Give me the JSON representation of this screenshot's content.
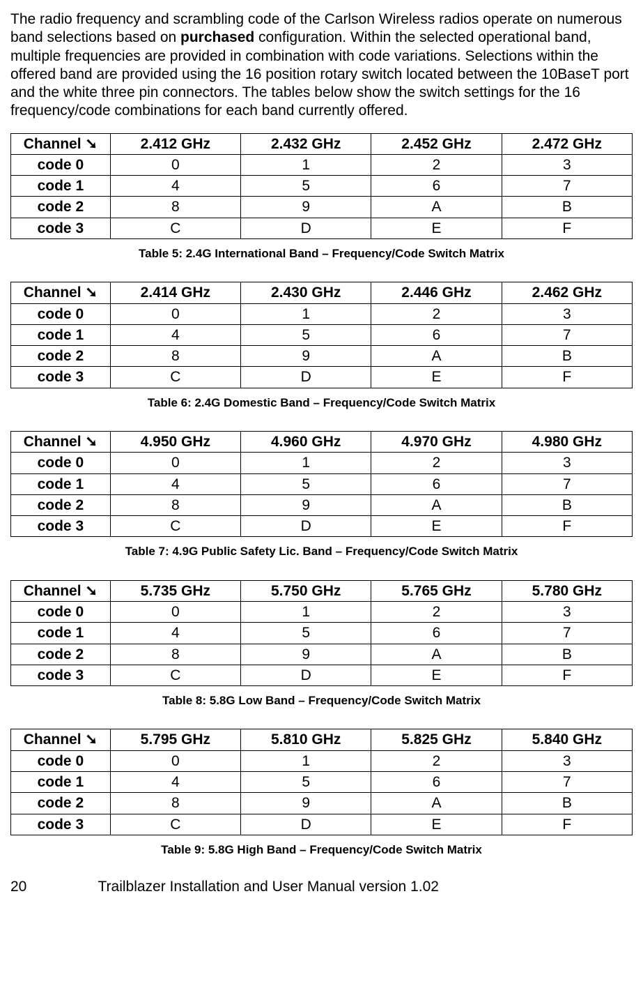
{
  "intro": {
    "part1": "The radio frequency and scrambling code of the Carlson Wireless radios operate on numerous band selections based on ",
    "bold": "purchased",
    "part2": " configuration.  Within the selected operational band, multiple frequencies are provided in combination with code variations.  Selections within the offered band are provided using the 16 position rotary switch located between the 10BaseT port and the white three pin connectors.  The tables below show the switch settings for the 16 frequency/code combinations for each band currently offered."
  },
  "channel_label": "Channel ",
  "arrow": "➘",
  "row_labels": [
    "code 0",
    "code 1",
    "code 2",
    "code 3"
  ],
  "matrix_rows": [
    [
      "0",
      "1",
      "2",
      "3"
    ],
    [
      "4",
      "5",
      "6",
      "7"
    ],
    [
      "8",
      "9",
      "A",
      "B"
    ],
    [
      "C",
      "D",
      "E",
      "F"
    ]
  ],
  "tables": [
    {
      "headers": [
        "2.412 GHz",
        "2.432 GHz",
        "2.452 GHz",
        "2.472 GHz"
      ],
      "caption": "Table 5:  2.4G International Band – Frequency/Code Switch Matrix"
    },
    {
      "headers": [
        "2.414 GHz",
        "2.430 GHz",
        "2.446 GHz",
        "2.462 GHz"
      ],
      "caption": "Table 6:  2.4G Domestic Band – Frequency/Code Switch Matrix"
    },
    {
      "headers": [
        "4.950 GHz",
        "4.960 GHz",
        "4.970 GHz",
        "4.980 GHz"
      ],
      "caption": "Table 7:  4.9G Public Safety Lic. Band – Frequency/Code Switch Matrix"
    },
    {
      "headers": [
        "5.735 GHz",
        "5.750 GHz",
        "5.765 GHz",
        "5.780 GHz"
      ],
      "caption": "Table 8:  5.8G Low Band – Frequency/Code Switch Matrix"
    },
    {
      "headers": [
        "5.795 GHz",
        "5.810 GHz",
        "5.825 GHz",
        "5.840 GHz"
      ],
      "caption": "Table 9:  5.8G High Band – Frequency/Code Switch Matrix"
    }
  ],
  "footer": {
    "page": "20",
    "title": "Trailblazer Installation and User Manual version 1.02"
  }
}
